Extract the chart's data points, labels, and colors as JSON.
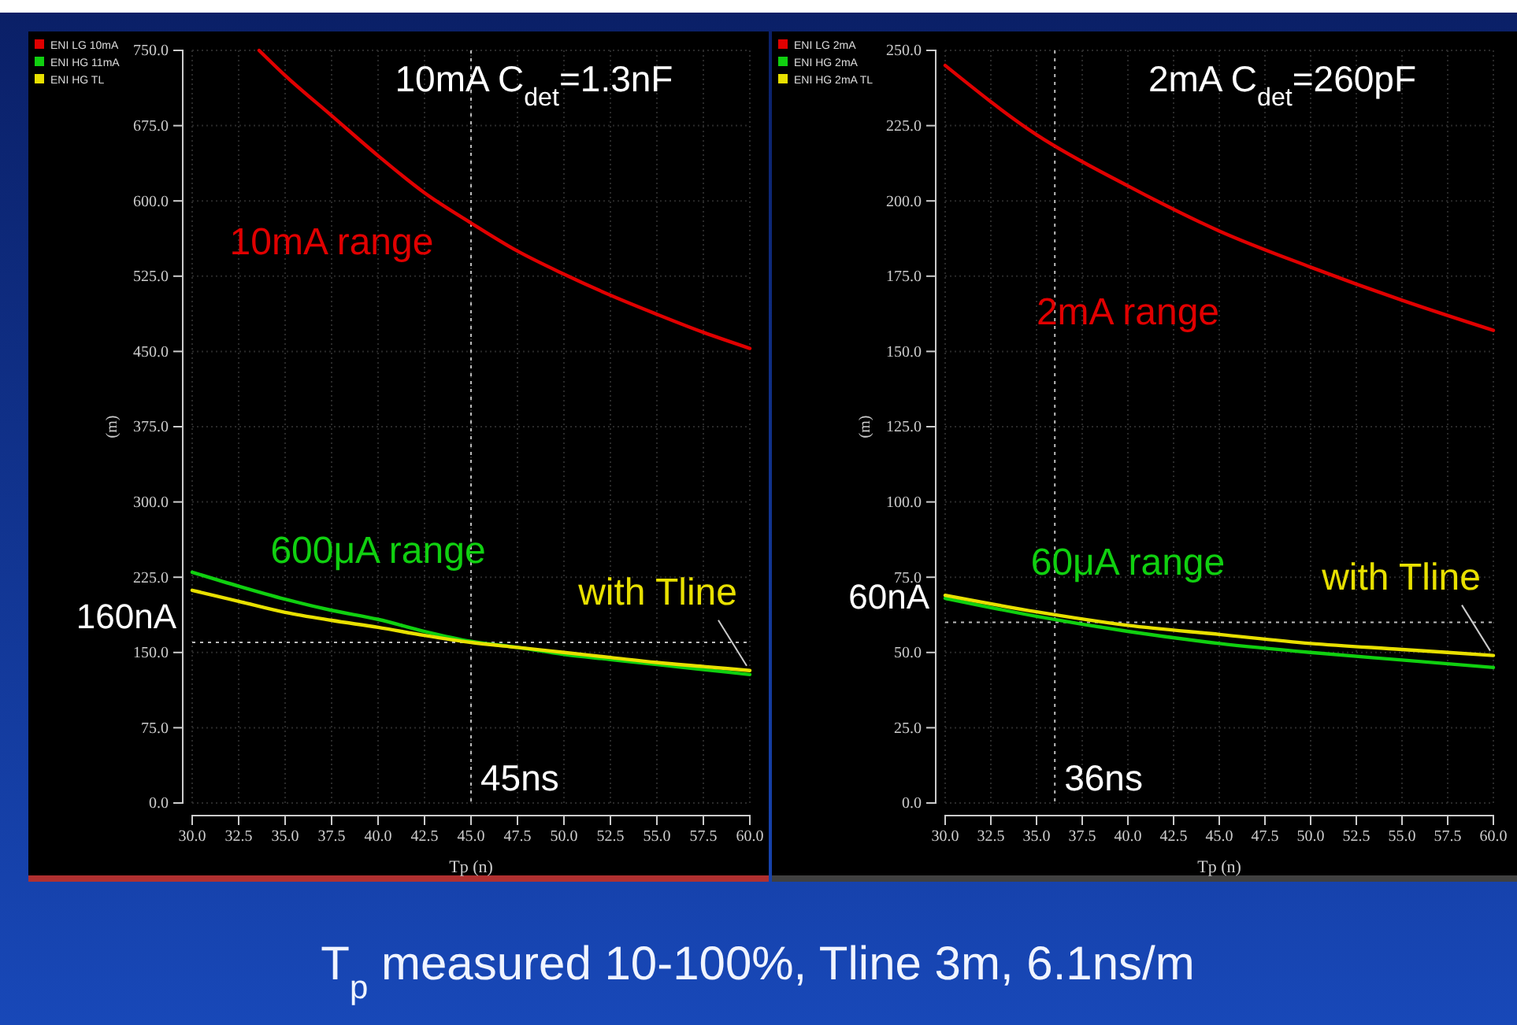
{
  "chart_data": [
    {
      "type": "line",
      "title": "10mA C$_{det}$=1.3nF",
      "xlabel": "Tp (n)",
      "ylabel": "(m)",
      "xlim": [
        30,
        60
      ],
      "xticks": [
        {
          "value": 30,
          "label": "30.0"
        },
        {
          "value": 32.5,
          "label": "32.5"
        },
        {
          "value": 35,
          "label": "35.0"
        },
        {
          "value": 37.5,
          "label": "37.5"
        },
        {
          "value": 40,
          "label": "40.0"
        },
        {
          "value": 42.5,
          "label": "42.5"
        },
        {
          "value": 45,
          "label": "45.0"
        },
        {
          "value": 47.5,
          "label": "47.5"
        },
        {
          "value": 50,
          "label": "50.0"
        },
        {
          "value": 52.5,
          "label": "52.5"
        },
        {
          "value": 55,
          "label": "55.0"
        },
        {
          "value": 57.5,
          "label": "57.5"
        },
        {
          "value": 60,
          "label": "60.0"
        }
      ],
      "ylim": [
        0,
        750
      ],
      "yticks": [
        {
          "value": 0,
          "label": "0.0"
        },
        {
          "value": 75,
          "label": "75.0"
        },
        {
          "value": 150,
          "label": "150.0"
        },
        {
          "value": 225,
          "label": "225.0"
        },
        {
          "value": 300,
          "label": "300.0"
        },
        {
          "value": 375,
          "label": "375.0"
        },
        {
          "value": 450,
          "label": "450.0"
        },
        {
          "value": 525,
          "label": "525.0"
        },
        {
          "value": 600,
          "label": "600.0"
        },
        {
          "value": 675,
          "label": "675.0"
        },
        {
          "value": 750,
          "label": "750.0"
        }
      ],
      "grid": true,
      "legend": "top left",
      "marker": "none",
      "line_style": "solid",
      "series": [
        {
          "name": "ENI LG 10mA",
          "color": "#e00000",
          "x": [
            33.6,
            35,
            37.5,
            40,
            42.5,
            45,
            47.5,
            50,
            52.5,
            55,
            57.5,
            60
          ],
          "values": [
            750,
            725,
            685,
            645,
            608,
            578,
            550,
            527,
            506,
            487,
            469,
            453
          ]
        },
        {
          "name": "ENI HG 11mA",
          "color": "#10d010",
          "x": [
            30,
            32.5,
            35,
            37.5,
            40,
            42.5,
            45,
            47.5,
            50,
            52.5,
            55,
            57.5,
            60
          ],
          "values": [
            230,
            216,
            203,
            192,
            183,
            171,
            161,
            155,
            148,
            143,
            138,
            133,
            128
          ]
        },
        {
          "name": "ENI HG TL",
          "color": "#e8e000",
          "x": [
            30,
            32.5,
            35,
            37.5,
            40,
            42.5,
            45,
            47.5,
            50,
            52.5,
            55,
            57.5,
            60
          ],
          "values": [
            212,
            201,
            190,
            182,
            175,
            167,
            160,
            155,
            150,
            145,
            140,
            136,
            132
          ]
        }
      ],
      "ref_lines": [
        {
          "axis": "y",
          "value": 160,
          "label": "160nA",
          "color": "#bbbbbb",
          "line_style": "dotted"
        },
        {
          "axis": "x",
          "value": 45,
          "label": "45ns",
          "color": "#bbbbbb",
          "line_style": "dotted"
        }
      ],
      "annotations": [
        {
          "text": "10mA range",
          "x": 37.5,
          "y": 685
        },
        {
          "text": "600μA range",
          "x": 40,
          "y": 183
        },
        {
          "text": "with Tline",
          "x": 60,
          "y": 132
        },
        "T$_{p}$ measured 10-100%,  Tline 3m, 6.1ns/m"
      ]
    },
    {
      "type": "line",
      "title": "2mA C$_{det}$=260pF",
      "xlabel": "Tp (n)",
      "ylabel": "(m)",
      "xlim": [
        30,
        60
      ],
      "xticks": [
        {
          "value": 30,
          "label": "30.0"
        },
        {
          "value": 32.5,
          "label": "32.5"
        },
        {
          "value": 35,
          "label": "35.0"
        },
        {
          "value": 37.5,
          "label": "37.5"
        },
        {
          "value": 40,
          "label": "40.0"
        },
        {
          "value": 42.5,
          "label": "42.5"
        },
        {
          "value": 45,
          "label": "45.0"
        },
        {
          "value": 47.5,
          "label": "47.5"
        },
        {
          "value": 50,
          "label": "50.0"
        },
        {
          "value": 52.5,
          "label": "52.5"
        },
        {
          "value": 55,
          "label": "55.0"
        },
        {
          "value": 57.5,
          "label": "57.5"
        },
        {
          "value": 60,
          "label": "60.0"
        }
      ],
      "ylim": [
        0,
        250
      ],
      "yticks": [
        {
          "value": 0,
          "label": "0.0"
        },
        {
          "value": 25,
          "label": "25.0"
        },
        {
          "value": 50,
          "label": "50.0"
        },
        {
          "value": 75,
          "label": "75.0"
        },
        {
          "value": 100,
          "label": "100.0"
        },
        {
          "value": 125,
          "label": "125.0"
        },
        {
          "value": 150,
          "label": "150.0"
        },
        {
          "value": 175,
          "label": "175.0"
        },
        {
          "value": 200,
          "label": "200.0"
        },
        {
          "value": 225,
          "label": "225.0"
        },
        {
          "value": 250,
          "label": "250.0"
        }
      ],
      "grid": true,
      "legend": "top left",
      "marker": "none",
      "line_style": "solid",
      "series": [
        {
          "name": "ENI LG 2mA",
          "color": "#e00000",
          "x": [
            30,
            35,
            40,
            45,
            50,
            55,
            60
          ],
          "values": [
            245,
            222,
            205,
            190,
            178,
            167,
            157
          ]
        },
        {
          "name": "ENI HG 2mA",
          "color": "#10d010",
          "x": [
            30,
            35,
            40,
            45,
            50,
            55,
            60
          ],
          "values": [
            68,
            62,
            57,
            53,
            50,
            47.5,
            45
          ]
        },
        {
          "name": "ENI HG 2mA TL",
          "color": "#e8e000",
          "x": [
            30,
            35,
            40,
            45,
            50,
            55,
            60
          ],
          "values": [
            69,
            63.5,
            59,
            56,
            53,
            51,
            49
          ]
        }
      ],
      "ref_lines": [
        {
          "axis": "y",
          "value": 60,
          "label": "60nA",
          "color": "#bbbbbb",
          "line_style": "dotted"
        },
        {
          "axis": "x",
          "value": 36,
          "label": "36ns",
          "color": "#bbbbbb",
          "line_style": "dotted"
        }
      ],
      "annotations": [
        {
          "text": "2mA range",
          "x": 40,
          "y": 205
        },
        {
          "text": "60μA range",
          "x": 40,
          "y": 57
        },
        {
          "text": "with Tline",
          "x": 60,
          "y": 49
        }
      ]
    }
  ]
}
